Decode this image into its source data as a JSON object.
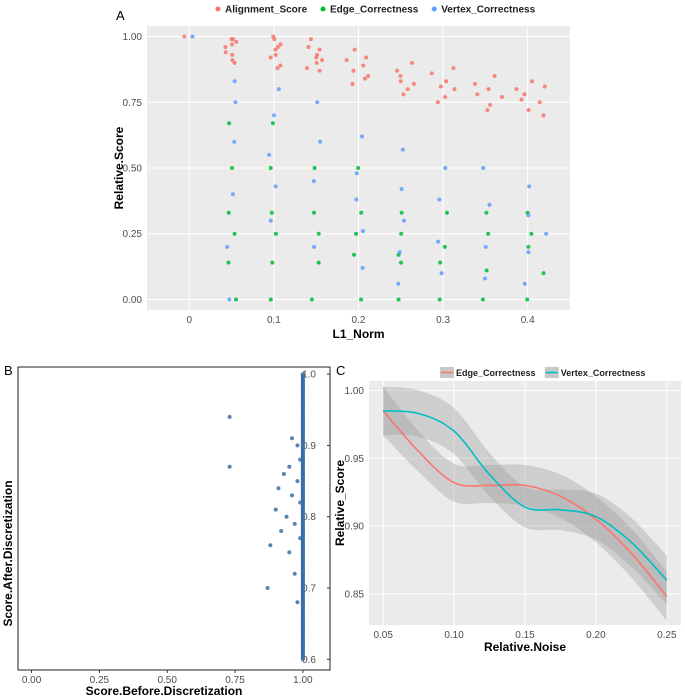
{
  "chart_data": [
    {
      "panel": "A",
      "type": "scatter",
      "xlabel": "L1_Norm",
      "ylabel": "Relative.Score",
      "xlim": [
        -0.05,
        0.45
      ],
      "ylim": [
        -0.04,
        1.04
      ],
      "xticks": [
        0,
        0.1,
        0.2,
        0.3,
        0.4
      ],
      "xtick_labels": [
        "0",
        "0.1",
        "0.2",
        "0.3",
        "0.4"
      ],
      "yticks": [
        0,
        0.25,
        0.5,
        0.75,
        1.0
      ],
      "ytick_labels": [
        "0.00",
        "0.25",
        "0.50",
        "0.75",
        "1.00"
      ],
      "grid": true,
      "legend_position": "top",
      "series": [
        {
          "name": "Alignment_Score",
          "color": "#F8766D",
          "points": [
            [
              0,
              1.0
            ],
            [
              0.045,
              0.99
            ],
            [
              0.048,
              0.96
            ],
            [
              0.05,
              0.93
            ],
            [
              0.052,
              0.97
            ],
            [
              0.054,
              0.9
            ],
            [
              0.05,
              0.99
            ],
            [
              0.047,
              0.94
            ],
            [
              0.053,
              0.91
            ],
            [
              0.055,
              0.98
            ],
            [
              0.095,
              0.99
            ],
            [
              0.098,
              0.95
            ],
            [
              0.1,
              0.92
            ],
            [
              0.102,
              0.97
            ],
            [
              0.104,
              0.89
            ],
            [
              0.1,
              1.0
            ],
            [
              0.097,
              0.93
            ],
            [
              0.105,
              0.88
            ],
            [
              0.103,
              0.96
            ],
            [
              0.143,
              0.96
            ],
            [
              0.147,
              0.92
            ],
            [
              0.15,
              0.9
            ],
            [
              0.152,
              0.95
            ],
            [
              0.155,
              0.87
            ],
            [
              0.148,
              0.99
            ],
            [
              0.153,
              0.93
            ],
            [
              0.157,
              0.91
            ],
            [
              0.145,
              0.88
            ],
            [
              0.19,
              0.91
            ],
            [
              0.195,
              0.87
            ],
            [
              0.2,
              0.89
            ],
            [
              0.205,
              0.84
            ],
            [
              0.198,
              0.95
            ],
            [
              0.21,
              0.92
            ],
            [
              0.215,
              0.85
            ],
            [
              0.192,
              0.82
            ],
            [
              0.24,
              0.87
            ],
            [
              0.245,
              0.83
            ],
            [
              0.25,
              0.85
            ],
            [
              0.255,
              0.8
            ],
            [
              0.262,
              0.9
            ],
            [
              0.248,
              0.78
            ],
            [
              0.266,
              0.82
            ],
            [
              0.29,
              0.86
            ],
            [
              0.295,
              0.81
            ],
            [
              0.3,
              0.83
            ],
            [
              0.305,
              0.77
            ],
            [
              0.312,
              0.88
            ],
            [
              0.298,
              0.75
            ],
            [
              0.318,
              0.8
            ],
            [
              0.34,
              0.82
            ],
            [
              0.345,
              0.78
            ],
            [
              0.35,
              0.8
            ],
            [
              0.355,
              0.74
            ],
            [
              0.362,
              0.85
            ],
            [
              0.348,
              0.72
            ],
            [
              0.37,
              0.77
            ],
            [
              0.39,
              0.8
            ],
            [
              0.395,
              0.76
            ],
            [
              0.4,
              0.78
            ],
            [
              0.405,
              0.72
            ],
            [
              0.41,
              0.83
            ],
            [
              0.415,
              0.7
            ],
            [
              0.42,
              0.75
            ],
            [
              0.425,
              0.81
            ]
          ]
        },
        {
          "name": "Edge_Correctness",
          "color": "#00BA38",
          "points": [
            [
              0.05,
              0.0
            ],
            [
              0.1,
              0.0
            ],
            [
              0.15,
              0.0
            ],
            [
              0.2,
              0.0
            ],
            [
              0.25,
              0.0
            ],
            [
              0.3,
              0.0
            ],
            [
              0.35,
              0.0
            ],
            [
              0.4,
              0.0
            ],
            [
              0.05,
              0.33
            ],
            [
              0.05,
              0.5
            ],
            [
              0.05,
              0.67
            ],
            [
              0.05,
              0.25
            ],
            [
              0.05,
              0.14
            ],
            [
              0.1,
              0.33
            ],
            [
              0.1,
              0.5
            ],
            [
              0.1,
              0.67
            ],
            [
              0.1,
              0.14
            ],
            [
              0.1,
              0.25
            ],
            [
              0.15,
              0.33
            ],
            [
              0.15,
              0.5
            ],
            [
              0.15,
              0.25
            ],
            [
              0.15,
              0.14
            ],
            [
              0.2,
              0.33
            ],
            [
              0.2,
              0.17
            ],
            [
              0.2,
              0.25
            ],
            [
              0.2,
              0.5
            ],
            [
              0.25,
              0.33
            ],
            [
              0.25,
              0.17
            ],
            [
              0.25,
              0.14
            ],
            [
              0.25,
              0.25
            ],
            [
              0.3,
              0.33
            ],
            [
              0.3,
              0.14
            ],
            [
              0.3,
              0.2
            ],
            [
              0.35,
              0.33
            ],
            [
              0.35,
              0.25
            ],
            [
              0.35,
              0.11
            ],
            [
              0.4,
              0.33
            ],
            [
              0.4,
              0.2
            ],
            [
              0.4,
              0.25
            ],
            [
              0.42,
              0.1
            ]
          ]
        },
        {
          "name": "Vertex_Correctness",
          "color": "#619CFF",
          "points": [
            [
              0,
              1.0
            ],
            [
              0.05,
              0.83
            ],
            [
              0.05,
              0.75
            ],
            [
              0.05,
              0.6
            ],
            [
              0.05,
              0.4
            ],
            [
              0.05,
              0.2
            ],
            [
              0.05,
              0.0
            ],
            [
              0.1,
              0.8
            ],
            [
              0.1,
              0.7
            ],
            [
              0.1,
              0.55
            ],
            [
              0.1,
              0.43
            ],
            [
              0.1,
              0.3
            ],
            [
              0.15,
              0.75
            ],
            [
              0.15,
              0.6
            ],
            [
              0.15,
              0.45
            ],
            [
              0.15,
              0.2
            ],
            [
              0.2,
              0.62
            ],
            [
              0.2,
              0.48
            ],
            [
              0.2,
              0.38
            ],
            [
              0.2,
              0.26
            ],
            [
              0.2,
              0.12
            ],
            [
              0.25,
              0.57
            ],
            [
              0.25,
              0.42
            ],
            [
              0.25,
              0.3
            ],
            [
              0.25,
              0.18
            ],
            [
              0.25,
              0.06
            ],
            [
              0.3,
              0.5
            ],
            [
              0.3,
              0.38
            ],
            [
              0.3,
              0.22
            ],
            [
              0.3,
              0.1
            ],
            [
              0.35,
              0.5
            ],
            [
              0.35,
              0.36
            ],
            [
              0.35,
              0.2
            ],
            [
              0.35,
              0.08
            ],
            [
              0.4,
              0.43
            ],
            [
              0.4,
              0.32
            ],
            [
              0.4,
              0.18
            ],
            [
              0.4,
              0.06
            ],
            [
              0.42,
              0.25
            ]
          ]
        }
      ]
    },
    {
      "panel": "B",
      "type": "scatter",
      "xlabel": "Score.Before.Discretization",
      "ylabel": "Score.After.Discretization",
      "xlim": [
        -0.05,
        1.1
      ],
      "ylim": [
        0.585,
        1.01
      ],
      "xticks": [
        0,
        0.25,
        0.5,
        0.75,
        1.0
      ],
      "xtick_labels": [
        "0.00",
        "0.25",
        "0.50",
        "0.75",
        "1.00"
      ],
      "yticks": [
        0.6,
        0.7,
        0.8,
        0.9,
        1.0
      ],
      "ytick_labels": [
        "0.6",
        "0.7",
        "0.8",
        "0.9",
        "1.0"
      ],
      "grid": false,
      "color": "#3A6EA5",
      "points": [
        [
          0.73,
          0.94
        ],
        [
          0.73,
          0.87
        ],
        [
          0.87,
          0.7
        ],
        [
          0.88,
          0.76
        ],
        [
          0.9,
          0.81
        ],
        [
          0.91,
          0.84
        ],
        [
          0.92,
          0.78
        ],
        [
          0.93,
          0.86
        ],
        [
          0.94,
          0.8
        ],
        [
          0.95,
          0.87
        ],
        [
          0.95,
          0.75
        ],
        [
          0.96,
          0.83
        ],
        [
          0.96,
          0.91
        ],
        [
          0.97,
          0.79
        ],
        [
          0.97,
          0.72
        ],
        [
          0.98,
          0.85
        ],
        [
          0.98,
          0.9
        ],
        [
          0.98,
          0.68
        ],
        [
          0.99,
          0.77
        ],
        [
          0.99,
          0.82
        ],
        [
          0.99,
          0.88
        ],
        [
          1.0,
          0.6
        ],
        [
          1.0,
          0.62
        ],
        [
          1.0,
          0.64
        ],
        [
          1.0,
          0.66
        ],
        [
          1.0,
          0.68
        ],
        [
          1.0,
          0.7
        ],
        [
          1.0,
          0.72
        ],
        [
          1.0,
          0.74
        ],
        [
          1.0,
          0.76
        ],
        [
          1.0,
          0.78
        ],
        [
          1.0,
          0.8
        ],
        [
          1.0,
          0.82
        ],
        [
          1.0,
          0.84
        ],
        [
          1.0,
          0.86
        ],
        [
          1.0,
          0.88
        ],
        [
          1.0,
          0.9
        ],
        [
          1.0,
          0.92
        ],
        [
          1.0,
          0.94
        ],
        [
          1.0,
          0.96
        ],
        [
          1.0,
          0.98
        ],
        [
          1.0,
          1.0
        ]
      ]
    },
    {
      "panel": "C",
      "type": "line",
      "xlabel": "Relative.Noise",
      "ylabel": "Relative_Score",
      "xlim": [
        0.04,
        0.26
      ],
      "ylim": [
        0.827,
        1.007
      ],
      "xticks": [
        0.05,
        0.1,
        0.15,
        0.2,
        0.25
      ],
      "xtick_labels": [
        "0.05",
        "0.10",
        "0.15",
        "0.20",
        "0.25"
      ],
      "yticks": [
        0.85,
        0.9,
        0.95,
        1.0
      ],
      "ytick_labels": [
        "0.85",
        "0.90",
        "0.95",
        "1.00"
      ],
      "grid": true,
      "legend_position": "top",
      "x": [
        0.05,
        0.075,
        0.1,
        0.125,
        0.15,
        0.175,
        0.2,
        0.225,
        0.25
      ],
      "series": [
        {
          "name": "Edge_Correctness",
          "color": "#F8766D",
          "values": [
            0.985,
            0.955,
            0.932,
            0.93,
            0.93,
            0.922,
            0.905,
            0.88,
            0.848
          ],
          "ci_low": [
            0.967,
            0.94,
            0.918,
            0.917,
            0.915,
            0.906,
            0.888,
            0.862,
            0.83
          ],
          "ci_high": [
            1.003,
            0.97,
            0.946,
            0.945,
            0.945,
            0.938,
            0.922,
            0.898,
            0.866
          ]
        },
        {
          "name": "Vertex_Correctness",
          "color": "#00BFC4",
          "values": [
            0.985,
            0.983,
            0.97,
            0.938,
            0.914,
            0.912,
            0.907,
            0.888,
            0.86
          ],
          "ci_low": [
            0.967,
            0.966,
            0.953,
            0.922,
            0.899,
            0.897,
            0.89,
            0.87,
            0.842
          ],
          "ci_high": [
            1.003,
            1.0,
            0.987,
            0.954,
            0.929,
            0.927,
            0.924,
            0.906,
            0.878
          ]
        }
      ]
    }
  ]
}
